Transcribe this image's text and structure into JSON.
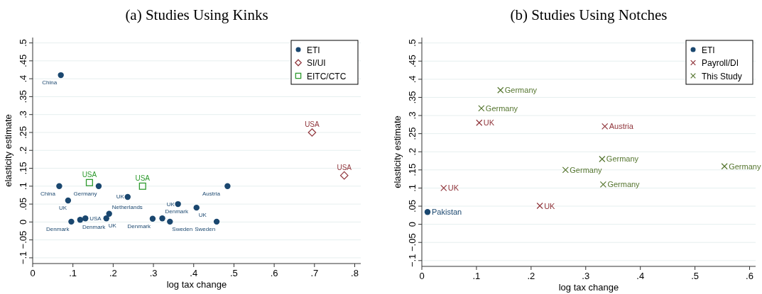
{
  "chart_data": [
    {
      "type": "scatter",
      "title": "(a) Studies Using Kinks",
      "xlabel": "log tax change",
      "ylabel": "elasticity estimate",
      "xlim": [
        0,
        0.815
      ],
      "ylim": [
        -0.116,
        0.515
      ],
      "xticks": [
        0,
        {
          "value": 0.1,
          "label": ".1"
        },
        {
          "value": 0.2,
          "label": ".2"
        },
        {
          "value": 0.3,
          "label": ".3"
        },
        {
          "value": 0.4,
          "label": ".4"
        },
        {
          "value": 0.5,
          "label": ".5"
        },
        {
          "value": 0.6,
          "label": ".6"
        },
        {
          "value": 0.7,
          "label": ".7"
        },
        {
          "value": 0.8,
          "label": ".8"
        }
      ],
      "yticks": [
        {
          "value": -0.1,
          "label": "−.1"
        },
        {
          "value": -0.05,
          "label": "−.05"
        },
        0,
        {
          "value": 0.05,
          "label": ".05"
        },
        {
          "value": 0.1,
          "label": ".1"
        },
        {
          "value": 0.15,
          "label": ".15"
        },
        {
          "value": 0.2,
          "label": ".2"
        },
        {
          "value": 0.25,
          "label": ".25"
        },
        {
          "value": 0.3,
          "label": ".3"
        },
        {
          "value": 0.35,
          "label": ".35"
        },
        {
          "value": 0.4,
          "label": ".4"
        },
        {
          "value": 0.45,
          "label": ".45"
        },
        {
          "value": 0.5,
          "label": ".5"
        }
      ],
      "grid": "y",
      "legend": "top right",
      "series": [
        {
          "name": "ETI",
          "color": "#1a476f",
          "marker": "circle",
          "x": [
            0.07,
            0.066,
            0.088,
            0.164,
            0.096,
            0.118,
            0.131,
            0.183,
            0.19,
            0.236,
            0.298,
            0.322,
            0.341,
            0.361,
            0.407,
            0.457,
            0.484
          ],
          "values": [
            0.41,
            0.1,
            0.06,
            0.1,
            0.001,
            0.006,
            0.01,
            0.01,
            0.023,
            0.07,
            0.009,
            0.01,
            0.001,
            0.05,
            0.04,
            0.001,
            0.1
          ]
        },
        {
          "name": "SI/UI",
          "color": "#90353b",
          "marker": "diamond",
          "x": [
            0.694,
            0.774
          ],
          "values": [
            0.25,
            0.13
          ]
        },
        {
          "name": "EITC/CTC",
          "color": "#2e9a2e",
          "marker": "square",
          "x": [
            0.141,
            0.273
          ],
          "values": [
            0.11,
            0.1
          ]
        }
      ],
      "annotations": [
        {
          "text": "China",
          "x": 0.07,
          "y": 0.41
        },
        {
          "text": "China",
          "x": 0.066,
          "y": 0.1
        },
        {
          "text": "UK",
          "x": 0.088,
          "y": 0.06
        },
        {
          "text": "Germany",
          "x": 0.164,
          "y": 0.1
        },
        {
          "text": "Denmark",
          "x": 0.096,
          "y": 0.001
        },
        {
          "text": "Denmark",
          "x": 0.118,
          "y": 0.006
        },
        {
          "text": "USA",
          "x": 0.131,
          "y": 0.01
        },
        {
          "text": "UK",
          "x": 0.183,
          "y": 0.01
        },
        {
          "text": "Netherlands",
          "x": 0.19,
          "y": 0.023
        },
        {
          "text": "UK",
          "x": 0.236,
          "y": 0.07
        },
        {
          "text": "Denmark",
          "x": 0.298,
          "y": 0.009
        },
        {
          "text": "Denmark",
          "x": 0.322,
          "y": 0.01
        },
        {
          "text": "Sweden",
          "x": 0.341,
          "y": 0.001
        },
        {
          "text": "UK",
          "x": 0.361,
          "y": 0.05
        },
        {
          "text": "UK",
          "x": 0.407,
          "y": 0.04
        },
        {
          "text": "Sweden",
          "x": 0.457,
          "y": 0.001
        },
        {
          "text": "Austria",
          "x": 0.484,
          "y": 0.1
        },
        {
          "text": "USA",
          "x": 0.694,
          "y": 0.25
        },
        {
          "text": "USA",
          "x": 0.774,
          "y": 0.13
        },
        {
          "text": "USA",
          "x": 0.141,
          "y": 0.11
        },
        {
          "text": "USA",
          "x": 0.273,
          "y": 0.1
        }
      ]
    },
    {
      "type": "scatter",
      "title": "(b) Studies Using Notches",
      "xlabel": "log tax change",
      "ylabel": "elasticity estimate",
      "xlim": [
        0,
        0.611
      ],
      "ylim": [
        -0.116,
        0.515
      ],
      "xticks": [
        0,
        {
          "value": 0.1,
          "label": ".1"
        },
        {
          "value": 0.2,
          "label": ".2"
        },
        {
          "value": 0.3,
          "label": ".3"
        },
        {
          "value": 0.4,
          "label": ".4"
        },
        {
          "value": 0.5,
          "label": ".5"
        },
        {
          "value": 0.6,
          "label": ".6"
        }
      ],
      "yticks": [
        {
          "value": -0.1,
          "label": "−.1"
        },
        {
          "value": -0.05,
          "label": "−.05"
        },
        0,
        {
          "value": 0.05,
          "label": ".05"
        },
        {
          "value": 0.1,
          "label": ".1"
        },
        {
          "value": 0.15,
          "label": ".15"
        },
        {
          "value": 0.2,
          "label": ".2"
        },
        {
          "value": 0.25,
          "label": ".25"
        },
        {
          "value": 0.3,
          "label": ".3"
        },
        {
          "value": 0.35,
          "label": ".35"
        },
        {
          "value": 0.4,
          "label": ".4"
        },
        {
          "value": 0.45,
          "label": ".45"
        },
        {
          "value": 0.5,
          "label": ".5"
        }
      ],
      "grid": "y",
      "legend": "top right",
      "series": [
        {
          "name": "ETI",
          "color": "#1a476f",
          "marker": "circle",
          "x": [
            0.0104
          ],
          "values": [
            0.034
          ]
        },
        {
          "name": "Payroll/DI",
          "color": "#90353b",
          "marker": "cross",
          "x": [
            0.04,
            0.105,
            0.216,
            0.335
          ],
          "values": [
            0.1,
            0.28,
            0.051,
            0.27
          ]
        },
        {
          "name": "This Study",
          "color": "#55752f",
          "marker": "cross",
          "x": [
            0.144,
            0.109,
            0.33,
            0.263,
            0.332,
            0.554
          ],
          "values": [
            0.37,
            0.32,
            0.18,
            0.15,
            0.11,
            0.16
          ]
        }
      ],
      "annotations": [
        {
          "text": "Pakistan",
          "x": 0.0104,
          "y": 0.034
        },
        {
          "text": "UK",
          "x": 0.04,
          "y": 0.1
        },
        {
          "text": "UK",
          "x": 0.105,
          "y": 0.28
        },
        {
          "text": "UK",
          "x": 0.216,
          "y": 0.051
        },
        {
          "text": "Austria",
          "x": 0.335,
          "y": 0.27
        },
        {
          "text": "Germany",
          "x": 0.144,
          "y": 0.37
        },
        {
          "text": "Germany",
          "x": 0.109,
          "y": 0.32
        },
        {
          "text": "Germany",
          "x": 0.33,
          "y": 0.18
        },
        {
          "text": "Germany",
          "x": 0.263,
          "y": 0.15
        },
        {
          "text": "Germany",
          "x": 0.332,
          "y": 0.11
        },
        {
          "text": "Germany",
          "x": 0.554,
          "y": 0.16
        }
      ]
    }
  ]
}
